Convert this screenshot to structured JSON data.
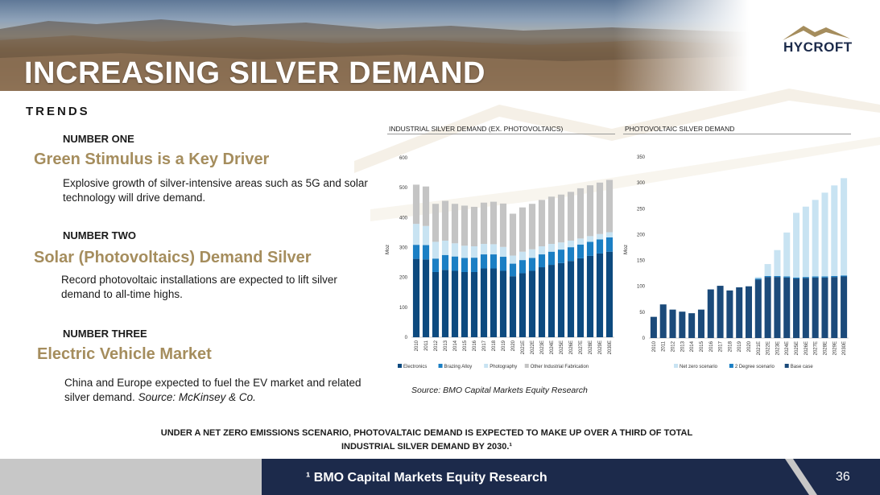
{
  "header": {
    "title": "INCREASING SILVER DEMAND",
    "logo_text": "HYCROFT"
  },
  "section_label": "TRENDS",
  "items": [
    {
      "number": "NUMBER ONE",
      "heading": "Green Stimulus is a Key Driver",
      "body": "Explosive growth of silver-intensive areas such as 5G and solar technology will drive demand."
    },
    {
      "number": "NUMBER TWO",
      "heading": "Solar (Photovoltaics) Demand Silver",
      "body": "Record photovoltaic installations are expected to lift silver demand to all-time highs."
    },
    {
      "number": "NUMBER THREE",
      "heading": "Electric Vehicle Market",
      "body": "China and Europe expected to fuel the EV market and related silver demand.",
      "body_source": "Source: McKinsey & Co."
    }
  ],
  "chart_source": "Source: BMO Capital Markets Equity Research",
  "note": "UNDER A NET ZERO EMISSIONS SCENARIO, PHOTOVALTAIC DEMAND IS EXPECTED TO MAKE UP OVER A THIRD OF TOTAL INDUSTRIAL SILVER DEMAND BY 2030.¹",
  "footer": {
    "text": "¹ BMO Capital Markets Equity Research",
    "page_number": "36"
  },
  "colors": {
    "accent_gold": "#a58d5d",
    "navy": "#1b2a4a",
    "dark_blue": "#0d4a7f",
    "mid_blue": "#1b7fc4",
    "light_blue": "#c8e3f2",
    "grey": "#c4c4c4"
  },
  "chart_data": [
    {
      "type": "bar",
      "stacked": true,
      "title": "INDUSTRIAL SILVER DEMAND (EX. PHOTOVOLTAICS)",
      "xlabel": "",
      "ylabel": "Moz",
      "ylim": [
        0,
        600
      ],
      "yticks": [
        0,
        100,
        200,
        300,
        400,
        500,
        600
      ],
      "categories": [
        "2010",
        "2011",
        "2012",
        "2013",
        "2014",
        "2015",
        "2016",
        "2017",
        "2018",
        "2019",
        "2020",
        "2021E",
        "2022E",
        "2023E",
        "2024E",
        "2025E",
        "2026E",
        "2027E",
        "2028E",
        "2029E",
        "2030E"
      ],
      "series": [
        {
          "name": "Electronics",
          "color": "#0d4a7f",
          "values": [
            262,
            260,
            218,
            225,
            222,
            218,
            218,
            230,
            230,
            222,
            204,
            214,
            222,
            234,
            242,
            248,
            255,
            264,
            272,
            280,
            286
          ]
        },
        {
          "name": "Brazing Alloy",
          "color": "#1b7fc4",
          "values": [
            47,
            48,
            45,
            50,
            48,
            47,
            48,
            47,
            47,
            47,
            42,
            44,
            43,
            43,
            44,
            45,
            46,
            46,
            47,
            47,
            48
          ]
        },
        {
          "name": "Photography",
          "color": "#c8e3f2",
          "values": [
            70,
            64,
            56,
            48,
            44,
            41,
            38,
            35,
            34,
            33,
            27,
            28,
            29,
            27,
            26,
            24,
            22,
            20,
            19,
            18,
            17
          ]
        },
        {
          "name": "Other Industrial Fabrication",
          "color": "#c4c4c4",
          "values": [
            131,
            132,
            127,
            133,
            132,
            134,
            132,
            138,
            142,
            145,
            140,
            148,
            152,
            155,
            158,
            160,
            163,
            168,
            170,
            172,
            175
          ]
        }
      ],
      "legend": "bottom"
    },
    {
      "type": "bar",
      "stacked": true,
      "title": "PHOTOVOLTAIC SILVER DEMAND",
      "xlabel": "",
      "ylabel": "Moz",
      "ylim": [
        0,
        350
      ],
      "yticks": [
        0,
        50,
        100,
        150,
        200,
        250,
        300,
        350
      ],
      "categories": [
        "2010",
        "2011",
        "2012",
        "2013",
        "2014",
        "2015",
        "2016",
        "2017",
        "2018",
        "2019",
        "2020",
        "2021E",
        "2022E",
        "2023E",
        "2024E",
        "2025E",
        "2026E",
        "2027E",
        "2028E",
        "2029E",
        "2030E"
      ],
      "series": [
        {
          "name": "Base case",
          "color": "#1b4a7a",
          "values": [
            41,
            65,
            55,
            51,
            48,
            55,
            94,
            101,
            92,
            98,
            100,
            113,
            118,
            118,
            117,
            115,
            116,
            117,
            117,
            118,
            119
          ]
        },
        {
          "name": "2 Degree scenario",
          "color": "#1b7fc4",
          "values": [
            0,
            0,
            0,
            0,
            0,
            0,
            0,
            0,
            0,
            0,
            0,
            2,
            2,
            2,
            2,
            2,
            2,
            2,
            2,
            2,
            2
          ]
        },
        {
          "name": "Net zero scenario",
          "color": "#c8e3f2",
          "values": [
            0,
            0,
            0,
            0,
            0,
            0,
            0,
            0,
            0,
            0,
            0,
            3,
            23,
            50,
            85,
            125,
            136,
            148,
            162,
            175,
            188
          ]
        }
      ],
      "legend_order": [
        "Net zero scenario",
        "2 Degree scenario",
        "Base case"
      ],
      "legend": "bottom"
    }
  ]
}
